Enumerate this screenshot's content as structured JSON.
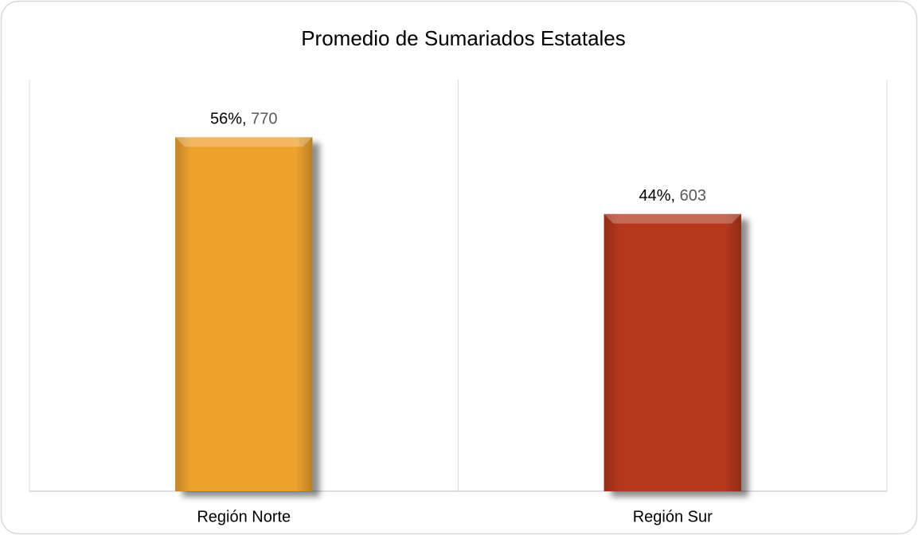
{
  "chart_data": {
    "type": "bar",
    "title": "Promedio de Sumariados Estatales",
    "categories": [
      "Región Norte",
      "Región Sur"
    ],
    "values": [
      770,
      603
    ],
    "value_labels": [
      "56%, 770",
      "44%, 603"
    ],
    "colors": [
      "#eea22d",
      "#b5391b"
    ],
    "grid": true
  }
}
